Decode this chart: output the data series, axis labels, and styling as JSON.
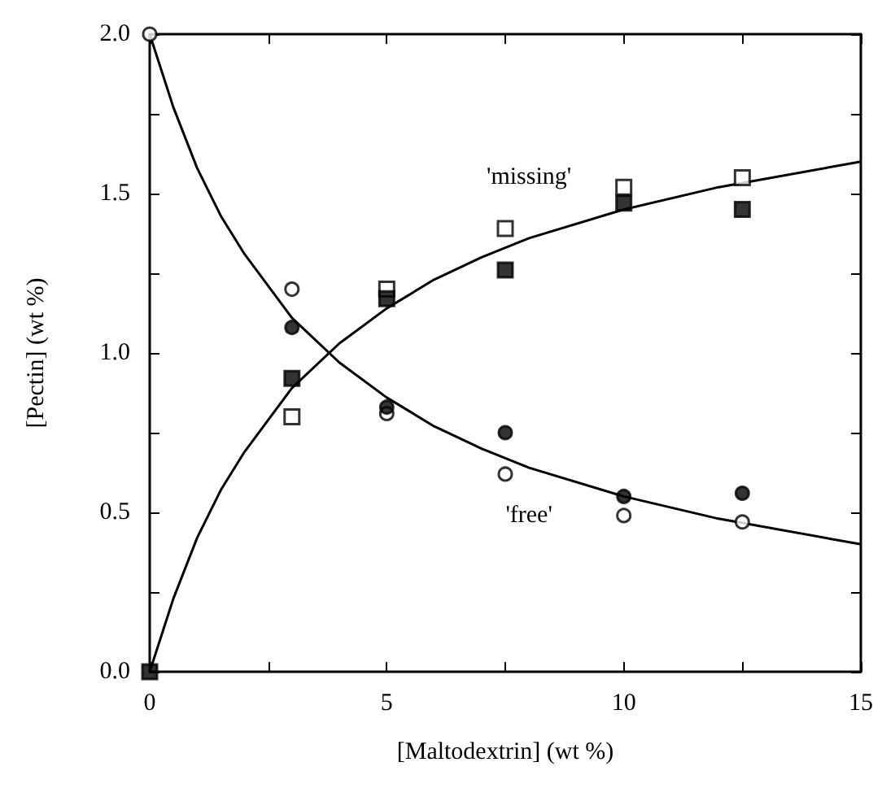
{
  "chart_data": {
    "type": "scatter",
    "xlabel": "[Maltodextrin] (wt %)",
    "ylabel": "[Pectin] (wt %)",
    "xlim": [
      0,
      15
    ],
    "ylim": [
      0,
      2
    ],
    "xticks": [
      0,
      {
        "value": 2.5,
        "label": null
      },
      5,
      {
        "value": 7.5,
        "label": null
      },
      10,
      {
        "value": 12.5,
        "label": null
      },
      15
    ],
    "yticks": [
      {
        "value": 0,
        "label": "0.0"
      },
      {
        "value": 0.25,
        "label": null
      },
      {
        "value": 0.5,
        "label": "0.5"
      },
      {
        "value": 0.75,
        "label": null
      },
      {
        "value": 1,
        "label": "1.0"
      },
      {
        "value": 1.25,
        "label": null
      },
      {
        "value": 1.5,
        "label": "1.5"
      },
      {
        "value": 1.75,
        "label": null
      },
      {
        "value": 2,
        "label": "2.0"
      }
    ],
    "grid": false,
    "series": [
      {
        "type": "line",
        "name": "'free'",
        "marker": "none",
        "color": "#000000",
        "x": [
          0,
          0.5,
          1,
          1.5,
          2,
          3,
          4,
          5,
          6,
          7,
          8,
          10,
          12,
          15
        ],
        "values": [
          2.0,
          1.77,
          1.58,
          1.43,
          1.31,
          1.11,
          0.97,
          0.86,
          0.77,
          0.7,
          0.64,
          0.55,
          0.48,
          0.4
        ]
      },
      {
        "type": "line",
        "name": "'missing'",
        "marker": "none",
        "color": "#000000",
        "x": [
          0,
          0.5,
          1,
          1.5,
          2,
          3,
          4,
          5,
          6,
          7,
          8,
          10,
          12,
          15
        ],
        "values": [
          0,
          0.23,
          0.42,
          0.57,
          0.69,
          0.89,
          1.03,
          1.14,
          1.23,
          1.3,
          1.36,
          1.45,
          1.52,
          1.6
        ]
      },
      {
        "marker": "circle",
        "color": "#ffffff",
        "x": [
          0,
          3,
          5,
          7.5,
          10,
          12.5
        ],
        "values": [
          2.0,
          1.2,
          0.81,
          0.62,
          0.49,
          0.47
        ]
      },
      {
        "marker": "circle",
        "color": "#000000",
        "x": [
          3,
          5,
          7.5,
          10,
          12.5
        ],
        "values": [
          1.08,
          0.83,
          0.75,
          0.55,
          0.56
        ]
      },
      {
        "marker": "square",
        "color": "#ffffff",
        "x": [
          3,
          5,
          7.5,
          10,
          12.5
        ],
        "values": [
          0.8,
          1.2,
          1.39,
          1.52,
          1.55
        ]
      },
      {
        "marker": "square",
        "color": "#000000",
        "x": [
          0,
          3,
          5,
          7.5,
          10,
          12.5
        ],
        "values": [
          0,
          0.92,
          1.17,
          1.26,
          1.47,
          1.45
        ]
      }
    ]
  }
}
